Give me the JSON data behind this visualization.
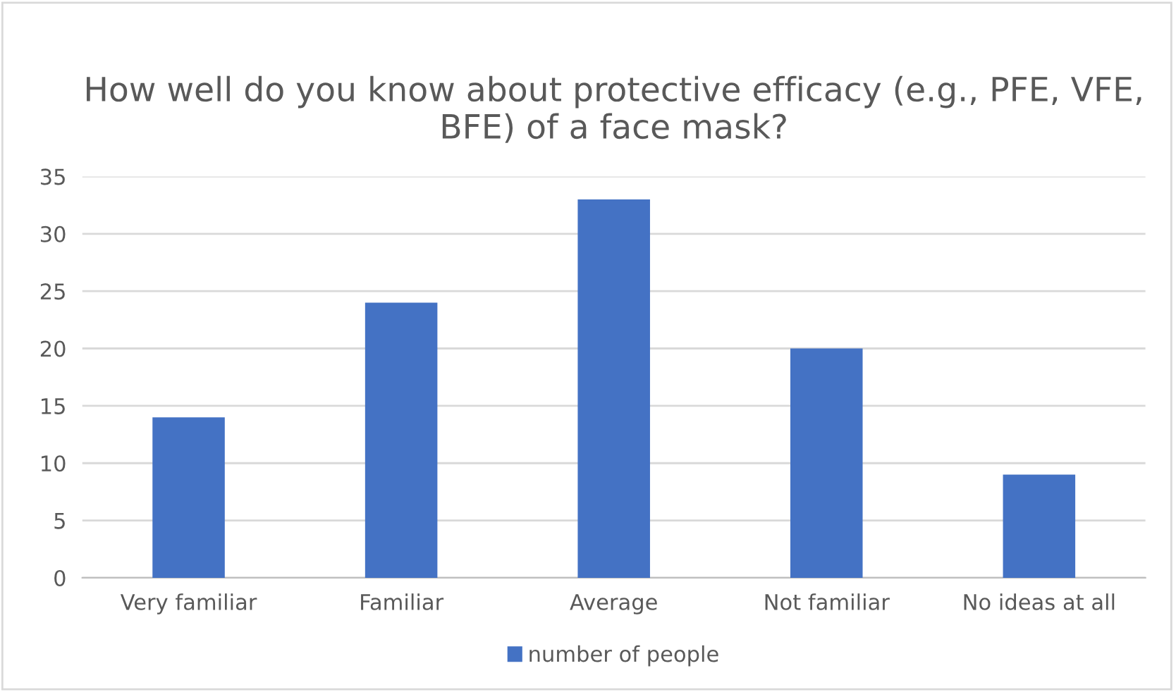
{
  "chart_data": {
    "type": "bar",
    "title": "How well do you know about protective efficacy (e.g., PFE, VFE, BFE) of a face mask?",
    "categories": [
      "Very familiar",
      "Familiar",
      "Average",
      "Not familiar",
      "No ideas at all"
    ],
    "series": [
      {
        "name": "number of people",
        "color": "#4472c4",
        "values": [
          14,
          24,
          33,
          20,
          9
        ]
      }
    ],
    "ylim": [
      0,
      35
    ],
    "yticks": [
      0,
      5,
      10,
      15,
      20,
      25,
      30,
      35
    ],
    "grid": "y",
    "legend": "bottom"
  }
}
